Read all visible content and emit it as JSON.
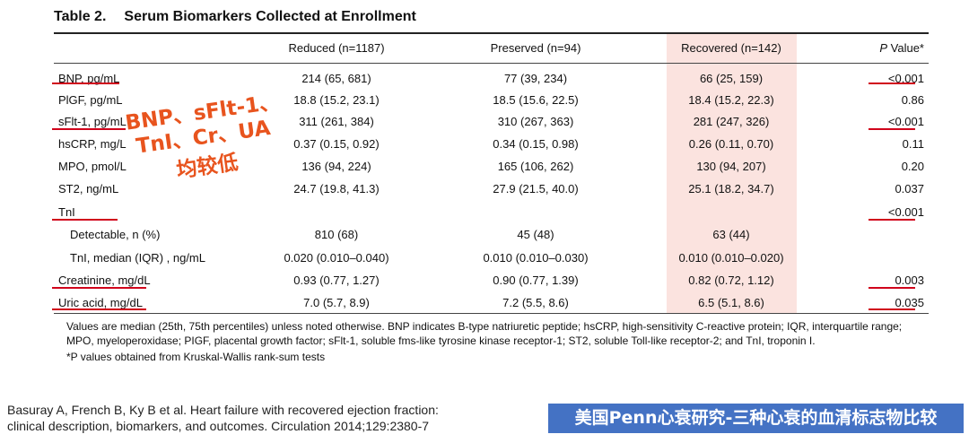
{
  "table": {
    "label": "Table 2.",
    "title": "Serum Biomarkers Collected at Enrollment",
    "headers": [
      "",
      "Reduced (n=1187)",
      "Preserved (n=94)",
      "Recovered (n=142)",
      "P Value*"
    ],
    "rows": [
      {
        "name": "BNP, pg/mL",
        "reduced": "214 (65, 681)",
        "preserved": "77 (39, 234)",
        "recovered": "66 (25, 159)",
        "p": "<0.001"
      },
      {
        "name": "PlGF, pg/mL",
        "reduced": "18.8 (15.2, 23.1)",
        "preserved": "18.5 (15.6, 22.5)",
        "recovered": "18.4 (15.2, 22.3)",
        "p": "0.86"
      },
      {
        "name": "sFlt-1, pg/mL",
        "reduced": "311 (261, 384)",
        "preserved": "310 (267, 363)",
        "recovered": "281 (247, 326)",
        "p": "<0.001"
      },
      {
        "name": "hsCRP, mg/L",
        "reduced": "0.37 (0.15, 0.92)",
        "preserved": "0.34 (0.15, 0.98)",
        "recovered": "0.26 (0.11, 0.70)",
        "p": "0.11"
      },
      {
        "name": "MPO, pmol/L",
        "reduced": "136 (94, 224)",
        "preserved": "165 (106, 262)",
        "recovered": "130 (94, 207)",
        "p": "0.20"
      },
      {
        "name": "ST2, ng/mL",
        "reduced": "24.7 (19.8, 41.3)",
        "preserved": "27.9 (21.5, 40.0)",
        "recovered": "25.1 (18.2, 34.7)",
        "p": "0.037"
      },
      {
        "name": "TnI",
        "reduced": "",
        "preserved": "",
        "recovered": "",
        "p": "<0.001"
      },
      {
        "name": "Detectable, n (%)",
        "reduced": "810 (68)",
        "preserved": "45 (48)",
        "recovered": "63 (44)",
        "p": ""
      },
      {
        "name": "TnI, median (IQR) , ng/mL",
        "reduced": "0.020 (0.010–0.040)",
        "preserved": "0.010 (0.010–0.030)",
        "recovered": "0.010 (0.010–0.020)",
        "p": ""
      },
      {
        "name": "Creatinine, mg/dL",
        "reduced": "0.93 (0.77, 1.27)",
        "preserved": "0.90 (0.77, 1.39)",
        "recovered": "0.82 (0.72, 1.12)",
        "p": "0.003"
      },
      {
        "name": "Uric acid, mg/dL",
        "reduced": "7.0 (5.7, 8.9)",
        "preserved": "7.2 (5.5, 8.6)",
        "recovered": "6.5 (5.1, 8.6)",
        "p": "0.035"
      }
    ]
  },
  "annotation": {
    "line1": "BNP、sFlt-1、",
    "line2": "TnI、Cr、UA",
    "line3": "均较低"
  },
  "footnote": {
    "text": "Values are median (25th, 75th percentiles) unless noted otherwise. BNP indicates B-type natriuretic peptide; hsCRP, high-sensitivity C-reactive protein; IQR, interquartile range; MPO, myeloperoxidase; PIGF, placental growth factor; sFlt-1, soluble fms-like tyrosine kinase receptor-1; ST2, soluble Toll-like receptor-2; and TnI, troponin I.",
    "pnote": "*P values obtained from Kruskal-Wallis rank-sum tests"
  },
  "citation": {
    "line1": "Basuray A, French B, Ky B et al. Heart failure with recovered ejection fraction:",
    "line2": "clinical description, biomarkers, and outcomes. Circulation 2014;129:2380-7"
  },
  "banner": "美国Penn心衰研究-三种心衰的血清标志物比较",
  "colors": {
    "accent_red": "#d0021b",
    "annotation_orange": "#e8541e",
    "highlight": "#fbe3df",
    "banner_blue": "#4472c4"
  }
}
